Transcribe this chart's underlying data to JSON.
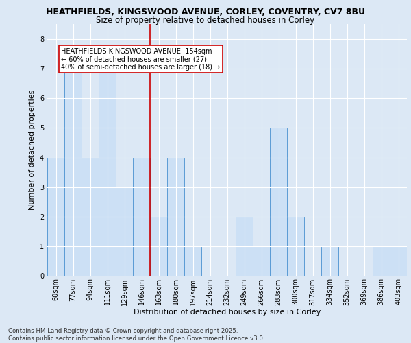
{
  "title_line1": "HEATHFIELDS, KINGSWOOD AVENUE, CORLEY, COVENTRY, CV7 8BU",
  "title_line2": "Size of property relative to detached houses in Corley",
  "xlabel": "Distribution of detached houses by size in Corley",
  "ylabel": "Number of detached properties",
  "footnote": "Contains HM Land Registry data © Crown copyright and database right 2025.\nContains public sector information licensed under the Open Government Licence v3.0.",
  "categories": [
    "60sqm",
    "77sqm",
    "94sqm",
    "111sqm",
    "129sqm",
    "146sqm",
    "163sqm",
    "180sqm",
    "197sqm",
    "214sqm",
    "232sqm",
    "249sqm",
    "266sqm",
    "283sqm",
    "300sqm",
    "317sqm",
    "334sqm",
    "352sqm",
    "369sqm",
    "386sqm",
    "403sqm"
  ],
  "values": [
    4,
    7,
    4,
    7,
    3,
    4,
    2,
    4,
    1,
    0,
    0,
    2,
    1,
    5,
    2,
    0,
    1,
    0,
    0,
    1,
    1
  ],
  "bar_color": "#cce0f5",
  "bar_edge_color": "#5b9bd5",
  "red_line_index": 5.5,
  "annotation_text": "HEATHFIELDS KINGSWOOD AVENUE: 154sqm\n← 60% of detached houses are smaller (27)\n40% of semi-detached houses are larger (18) →",
  "annotation_box_color": "#ffffff",
  "annotation_box_edge": "#cc0000",
  "annotation_text_color": "#000000",
  "ylim": [
    0,
    8.5
  ],
  "yticks": [
    0,
    1,
    2,
    3,
    4,
    5,
    6,
    7,
    8
  ],
  "background_color": "#dce8f5",
  "plot_bg_color": "#dce8f5",
  "grid_color": "#ffffff",
  "red_line_color": "#cc0000",
  "title1_fontsize": 9.0,
  "title2_fontsize": 8.5,
  "footnote_fontsize": 6.2,
  "ylabel_fontsize": 8.0,
  "xlabel_fontsize": 8.0,
  "tick_fontsize": 7.0,
  "annot_fontsize": 7.0
}
